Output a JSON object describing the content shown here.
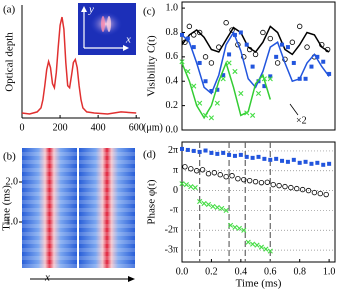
{
  "chart_data": [
    {
      "type": "line",
      "panel": "(a)",
      "ylabel": "Optical depth",
      "xlabel": "(μm)",
      "xlim": [
        0,
        620
      ],
      "xticks": [
        0,
        200,
        400,
        600
      ],
      "ylim": [
        0,
        1.12
      ],
      "inset": {
        "xlabel": "x",
        "ylabel": "y"
      },
      "series": [
        {
          "color": "#e03030",
          "style": "line",
          "x": [
            0,
            40,
            80,
            100,
            110,
            120,
            130,
            140,
            150,
            160,
            170,
            180,
            190,
            200,
            210,
            220,
            230,
            240,
            250,
            260,
            270,
            280,
            290,
            300,
            310,
            320,
            340,
            380,
            450,
            520,
            600
          ],
          "values": [
            0.05,
            0.04,
            0.06,
            0.1,
            0.18,
            0.32,
            0.48,
            0.56,
            0.5,
            0.34,
            0.3,
            0.45,
            0.7,
            0.92,
            1.0,
            0.88,
            0.55,
            0.32,
            0.3,
            0.42,
            0.55,
            0.58,
            0.5,
            0.32,
            0.18,
            0.1,
            0.06,
            0.05,
            0.04,
            0.06,
            0.05
          ]
        }
      ]
    },
    {
      "type": "image",
      "panel": "(b)",
      "ylabel": "Time (ms)",
      "xlabel": "x",
      "ylim": [
        -0.15,
        2.85
      ],
      "yticks": [
        {
          "value": 1,
          "label": "1.0"
        },
        {
          "value": 2,
          "label": "2.0"
        }
      ]
    },
    {
      "type": "line",
      "panel": "(c)",
      "ylabel": "Visibility C(t)",
      "annotation": "×2",
      "xlim": [
        0,
        1.04
      ],
      "ylim": [
        0,
        1.05
      ],
      "yticks": [
        {
          "value": 0,
          "label": "0.0"
        },
        {
          "value": 0.2,
          "label": "0.2"
        },
        {
          "value": 0.4,
          "label": "0.4"
        },
        {
          "value": 0.6,
          "label": "0.6"
        },
        {
          "value": 0.8,
          "label": "0.8"
        },
        {
          "value": 1,
          "label": "1.0"
        }
      ],
      "series": [
        {
          "color": "#000000",
          "style": "line",
          "x": [
            0,
            0.05,
            0.1,
            0.15,
            0.2,
            0.25,
            0.3,
            0.35,
            0.4,
            0.45,
            0.5,
            0.55,
            0.6,
            0.65,
            0.7,
            0.75,
            0.8,
            0.85,
            0.9,
            0.95,
            1.0
          ],
          "values": [
            0.7,
            0.78,
            0.82,
            0.76,
            0.66,
            0.64,
            0.74,
            0.84,
            0.8,
            0.68,
            0.64,
            0.72,
            0.85,
            0.8,
            0.66,
            0.62,
            0.7,
            0.8,
            0.78,
            0.68,
            0.64
          ]
        },
        {
          "color": "#000000",
          "style": "circle",
          "x": [
            0.02,
            0.05,
            0.08,
            0.12,
            0.16,
            0.2,
            0.25,
            0.3,
            0.34,
            0.38,
            0.42,
            0.46,
            0.5,
            0.55,
            0.6,
            0.65,
            0.7,
            0.75,
            0.8,
            0.85,
            0.9,
            0.95,
            0.99
          ],
          "values": [
            0.72,
            0.85,
            0.78,
            0.8,
            0.6,
            0.55,
            0.68,
            0.88,
            0.82,
            0.7,
            0.6,
            0.66,
            0.62,
            0.8,
            0.75,
            0.55,
            0.58,
            0.72,
            0.85,
            0.68,
            0.6,
            0.7,
            0.66
          ]
        },
        {
          "color": "#2255dd",
          "style": "line",
          "x": [
            0,
            0.05,
            0.1,
            0.15,
            0.2,
            0.25,
            0.3,
            0.35,
            0.4,
            0.45,
            0.5,
            0.55,
            0.6,
            0.65,
            0.7,
            0.75,
            0.8,
            0.85,
            0.9,
            0.95,
            1.0
          ],
          "values": [
            0.78,
            0.72,
            0.55,
            0.35,
            0.3,
            0.45,
            0.7,
            0.8,
            0.65,
            0.42,
            0.35,
            0.48,
            0.68,
            0.72,
            0.55,
            0.4,
            0.42,
            0.55,
            0.62,
            0.52,
            0.44
          ]
        },
        {
          "color": "#2255dd",
          "style": "square",
          "x": [
            0,
            0.04,
            0.08,
            0.12,
            0.16,
            0.2,
            0.24,
            0.28,
            0.32,
            0.36,
            0.4,
            0.44,
            0.48,
            0.52,
            0.56,
            0.6,
            0.64,
            0.68,
            0.72,
            0.76,
            0.8,
            0.84,
            0.88,
            0.92,
            0.96,
            1.0
          ],
          "values": [
            0.78,
            0.75,
            0.68,
            0.55,
            0.4,
            0.32,
            0.33,
            0.45,
            0.62,
            0.78,
            0.8,
            0.7,
            0.52,
            0.4,
            0.36,
            0.44,
            0.6,
            0.7,
            0.68,
            0.55,
            0.42,
            0.42,
            0.52,
            0.6,
            0.56,
            0.46
          ]
        },
        {
          "color": "#33cc33",
          "style": "line",
          "x": [
            0,
            0.05,
            0.1,
            0.15,
            0.2,
            0.25,
            0.3,
            0.35,
            0.4,
            0.45,
            0.5,
            0.55,
            0.6
          ],
          "values": [
            0.55,
            0.4,
            0.2,
            0.1,
            0.2,
            0.4,
            0.55,
            0.35,
            0.12,
            0.15,
            0.38,
            0.45,
            0.25
          ]
        },
        {
          "color": "#44dd44",
          "style": "cross",
          "x": [
            0,
            0.04,
            0.08,
            0.12,
            0.16,
            0.2,
            0.24,
            0.28,
            0.32,
            0.36,
            0.4,
            0.44,
            0.48,
            0.52,
            0.56,
            0.6
          ],
          "values": [
            0.56,
            0.48,
            0.36,
            0.22,
            0.12,
            0.1,
            0.22,
            0.42,
            0.55,
            0.48,
            0.3,
            0.14,
            0.12,
            0.3,
            0.42,
            0.42
          ]
        }
      ]
    },
    {
      "type": "scatter",
      "panel": "(d)",
      "ylabel": "Phase φ(t)",
      "xlabel": "Time (ms)",
      "grid": true,
      "xlim": [
        0,
        1.04
      ],
      "ylim": [
        -3.6,
        2.45
      ],
      "xticks": [
        {
          "value": 0,
          "label": "0.0"
        },
        {
          "value": 0.2,
          "label": "0.2"
        },
        {
          "value": 0.4,
          "label": "0.4"
        },
        {
          "value": 0.6,
          "label": "0.6"
        },
        {
          "value": 0.8,
          "label": "0.8"
        },
        {
          "value": 1,
          "label": "1.0"
        }
      ],
      "yticks": [
        {
          "value": 2,
          "label": "2π"
        },
        {
          "value": 1,
          "label": "π"
        },
        0,
        {
          "value": -1,
          "label": "-π"
        },
        {
          "value": -2,
          "label": "-2π"
        },
        {
          "value": -3,
          "label": "-3π"
        }
      ],
      "vlines": [
        0.12,
        0.32,
        0.43,
        0.6
      ],
      "series": [
        {
          "color": "#2255dd",
          "style": "square",
          "x": [
            0,
            0.04,
            0.08,
            0.12,
            0.16,
            0.2,
            0.24,
            0.28,
            0.32,
            0.36,
            0.4,
            0.44,
            0.48,
            0.52,
            0.56,
            0.6,
            0.64,
            0.68,
            0.72,
            0.76,
            0.8,
            0.84,
            0.88,
            0.92,
            0.96,
            1.0
          ],
          "values": [
            2.1,
            2.05,
            2.0,
            1.95,
            2.02,
            1.9,
            1.85,
            1.9,
            1.8,
            1.75,
            1.8,
            1.7,
            1.65,
            1.7,
            1.6,
            1.55,
            1.6,
            1.5,
            1.45,
            1.55,
            1.4,
            1.45,
            1.35,
            1.4,
            1.3,
            1.35
          ]
        },
        {
          "color": "#000000",
          "style": "circle",
          "x": [
            0.02,
            0.06,
            0.1,
            0.14,
            0.18,
            0.22,
            0.26,
            0.3,
            0.34,
            0.38,
            0.42,
            0.46,
            0.5,
            0.54,
            0.58,
            0.62,
            0.66,
            0.7,
            0.74,
            0.78,
            0.82,
            0.86,
            0.9,
            0.94,
            0.98
          ],
          "values": [
            1.2,
            1.1,
            1.0,
            1.05,
            0.85,
            0.9,
            0.8,
            0.7,
            0.75,
            0.6,
            0.55,
            0.5,
            0.45,
            0.4,
            0.42,
            0.3,
            0.25,
            0.2,
            0.15,
            0.1,
            0.05,
            0.0,
            -0.1,
            -0.15,
            -0.2
          ]
        },
        {
          "color": "#44dd44",
          "style": "cross",
          "x": [
            0,
            0.03,
            0.06,
            0.09,
            0.12,
            0.15,
            0.18,
            0.21,
            0.24,
            0.27,
            0.3,
            0.33,
            0.36,
            0.39,
            0.42,
            0.45,
            0.48,
            0.51,
            0.54,
            0.57,
            0.6
          ],
          "values": [
            0.35,
            0.3,
            0.2,
            0.15,
            -0.55,
            -0.65,
            -0.7,
            -0.8,
            -0.85,
            -0.9,
            -1.0,
            -1.75,
            -1.85,
            -1.9,
            -2.0,
            -2.6,
            -2.7,
            -2.75,
            -2.85,
            -2.95,
            -3.05
          ]
        }
      ]
    }
  ]
}
